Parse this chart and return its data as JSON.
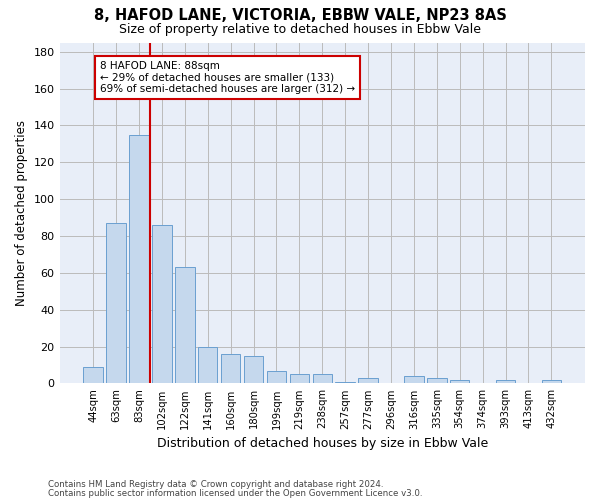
{
  "title1": "8, HAFOD LANE, VICTORIA, EBBW VALE, NP23 8AS",
  "title2": "Size of property relative to detached houses in Ebbw Vale",
  "xlabel": "Distribution of detached houses by size in Ebbw Vale",
  "ylabel": "Number of detached properties",
  "categories": [
    "44sqm",
    "63sqm",
    "83sqm",
    "102sqm",
    "122sqm",
    "141sqm",
    "160sqm",
    "180sqm",
    "199sqm",
    "219sqm",
    "238sqm",
    "257sqm",
    "277sqm",
    "296sqm",
    "316sqm",
    "335sqm",
    "354sqm",
    "374sqm",
    "393sqm",
    "413sqm",
    "432sqm"
  ],
  "values": [
    9,
    87,
    135,
    86,
    63,
    20,
    16,
    15,
    7,
    5,
    5,
    1,
    3,
    0,
    4,
    3,
    2,
    0,
    2,
    0,
    2
  ],
  "bar_color": "#c5d8ed",
  "bar_edge_color": "#6a9fd0",
  "vline_x": 2.5,
  "vline_color": "#cc0000",
  "annotation_text": "8 HAFOD LANE: 88sqm\n← 29% of detached houses are smaller (133)\n69% of semi-detached houses are larger (312) →",
  "annotation_box_color": "#ffffff",
  "annotation_box_edge": "#cc0000",
  "ylim": [
    0,
    185
  ],
  "yticks": [
    0,
    20,
    40,
    60,
    80,
    100,
    120,
    140,
    160,
    180
  ],
  "footer1": "Contains HM Land Registry data © Crown copyright and database right 2024.",
  "footer2": "Contains public sector information licensed under the Open Government Licence v3.0.",
  "bg_color": "#ffffff",
  "plot_bg_color": "#e8eef8",
  "grid_color": "#bbbbbb"
}
